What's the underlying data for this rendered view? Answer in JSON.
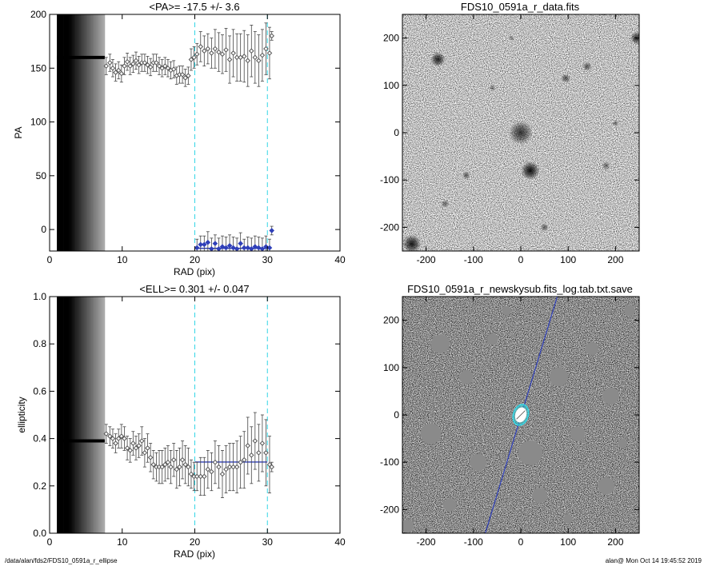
{
  "footer": {
    "path": "/data/alan/fds2/FDS10_0591a_r_ellipse",
    "stamp": "alan@  Mon Oct 14 19:45:52 2019"
  },
  "colors": {
    "cyan_marker": "#33d6e6",
    "fit_line": "#2f3fb8",
    "data_points": "#555555",
    "masked_region": "#8a8a8a"
  },
  "chart_data": [
    {
      "id": "pa",
      "type": "scatter",
      "title": "<PA>= -17.5 +/-   3.6",
      "xlabel": "RAD (pix)",
      "ylabel": "PA",
      "xlim": [
        0,
        40
      ],
      "ylim": [
        -20,
        200
      ],
      "xticks": [
        0,
        10,
        20,
        30,
        40
      ],
      "yticks": [
        0,
        50,
        100,
        150,
        200
      ],
      "vlines": [
        20,
        30
      ],
      "mean_line": {
        "x": [
          20,
          30
        ],
        "y": -17.5
      },
      "core_band": {
        "x": [
          1,
          7.6
        ],
        "value": 160
      },
      "series": [
        {
          "role": "profile",
          "x": [
            7.8,
            8.3,
            8.7,
            9.1,
            9.5,
            9.9,
            10.3,
            10.7,
            11.1,
            11.5,
            11.9,
            12.3,
            12.7,
            13.1,
            13.5,
            13.9,
            14.3,
            14.7,
            15.1,
            15.5,
            15.9,
            16.3,
            16.7,
            17.1,
            17.5,
            17.9,
            18.3,
            18.7,
            19.1,
            19.5,
            19.9,
            20.3,
            20.8,
            21.3,
            21.8,
            22.3,
            22.8,
            23.3,
            23.8,
            24.3,
            24.8,
            25.3,
            25.8,
            26.3,
            26.8,
            27.3,
            27.8,
            28.3,
            28.8,
            29.3,
            29.8,
            30.3,
            30.6
          ],
          "y": [
            152,
            155,
            150,
            146,
            148,
            145,
            152,
            156,
            152,
            154,
            157,
            153,
            155,
            155,
            153,
            151,
            155,
            155,
            152,
            150,
            152,
            150,
            148,
            149,
            143,
            144,
            144,
            141,
            143,
            158,
            160,
            163,
            170,
            166,
            168,
            164,
            168,
            165,
            163,
            167,
            158,
            164,
            160,
            160,
            161,
            157,
            166,
            160,
            157,
            162,
            168,
            164,
            180
          ],
          "err": [
            8,
            8,
            8,
            8,
            8,
            8,
            8,
            8,
            8,
            8,
            8,
            8,
            8,
            8,
            8,
            8,
            8,
            8,
            8,
            8,
            8,
            8,
            8,
            8,
            8,
            8,
            8,
            8,
            8,
            10,
            10,
            10,
            14,
            14,
            14,
            14,
            18,
            18,
            18,
            20,
            22,
            22,
            22,
            22,
            24,
            24,
            24,
            24,
            24,
            24,
            24,
            24,
            4
          ]
        },
        {
          "role": "wrapped",
          "x": [
            20.3,
            20.8,
            21.3,
            21.8,
            22.3,
            22.8,
            23.3,
            23.8,
            24.3,
            24.8,
            25.3,
            25.8,
            26.3,
            26.8,
            27.3,
            27.8,
            28.3,
            28.8,
            29.3,
            29.8,
            30.3,
            30.6
          ],
          "y": [
            -17,
            -14,
            -14,
            -12,
            -18,
            -13,
            -18,
            -16,
            -17,
            -15,
            -17,
            -18,
            -13,
            -17,
            -17,
            -18,
            -16,
            -17,
            -18,
            -16,
            -17,
            -1
          ],
          "err": [
            8,
            8,
            8,
            10,
            10,
            8,
            10,
            10,
            10,
            10,
            10,
            10,
            10,
            8,
            10,
            10,
            10,
            10,
            10,
            10,
            8,
            4
          ]
        }
      ]
    },
    {
      "id": "ell",
      "type": "scatter",
      "title": "<ELL>= 0.301 +/-  0.047",
      "xlabel": "RAD (pix)",
      "ylabel": "ellipticity",
      "xlim": [
        0,
        40
      ],
      "ylim": [
        0,
        1
      ],
      "xticks": [
        0,
        10,
        20,
        30,
        40
      ],
      "yticks": [
        0.0,
        0.2,
        0.4,
        0.6,
        0.8,
        1.0
      ],
      "ytick_labels": [
        "0.0",
        "0.2",
        "0.4",
        "0.6",
        "0.8",
        "1.0"
      ],
      "vlines": [
        20,
        30
      ],
      "mean_line": {
        "x": [
          20,
          30
        ],
        "y": 0.301
      },
      "core_band": {
        "x": [
          1,
          7.6
        ],
        "value": 0.39
      },
      "series": [
        {
          "role": "profile",
          "x": [
            7.8,
            8.3,
            8.7,
            9.1,
            9.5,
            9.9,
            10.3,
            10.7,
            11.1,
            11.5,
            11.9,
            12.3,
            12.7,
            13.1,
            13.5,
            13.9,
            14.3,
            14.7,
            15.1,
            15.5,
            15.9,
            16.3,
            16.7,
            17.1,
            17.5,
            17.9,
            18.3,
            18.7,
            19.1,
            19.5,
            19.9,
            20.3,
            20.8,
            21.3,
            21.8,
            22.3,
            22.8,
            23.3,
            23.8,
            24.3,
            24.8,
            25.3,
            25.8,
            26.3,
            26.8,
            27.3,
            27.8,
            28.3,
            28.8,
            29.3,
            29.8,
            30.3,
            30.6
          ],
          "y": [
            0.42,
            0.41,
            0.4,
            0.38,
            0.4,
            0.41,
            0.4,
            0.36,
            0.35,
            0.38,
            0.36,
            0.37,
            0.39,
            0.34,
            0.36,
            0.32,
            0.29,
            0.28,
            0.28,
            0.28,
            0.29,
            0.3,
            0.28,
            0.31,
            0.27,
            0.28,
            0.31,
            0.29,
            0.28,
            0.25,
            0.24,
            0.24,
            0.24,
            0.24,
            0.27,
            0.26,
            0.3,
            0.28,
            0.25,
            0.27,
            0.28,
            0.28,
            0.28,
            0.3,
            0.31,
            0.37,
            0.33,
            0.39,
            0.34,
            0.38,
            0.34,
            0.29,
            0.28
          ],
          "err": [
            0.04,
            0.04,
            0.04,
            0.04,
            0.04,
            0.05,
            0.05,
            0.05,
            0.05,
            0.05,
            0.05,
            0.05,
            0.06,
            0.06,
            0.06,
            0.06,
            0.06,
            0.06,
            0.07,
            0.07,
            0.07,
            0.07,
            0.07,
            0.07,
            0.08,
            0.08,
            0.08,
            0.08,
            0.08,
            0.06,
            0.06,
            0.06,
            0.08,
            0.08,
            0.08,
            0.08,
            0.09,
            0.09,
            0.1,
            0.1,
            0.1,
            0.1,
            0.11,
            0.11,
            0.12,
            0.12,
            0.12,
            0.12,
            0.12,
            0.12,
            0.14,
            0.12,
            0.02
          ]
        }
      ]
    },
    {
      "id": "img-data",
      "type": "heatmap",
      "title": "FDS10_0591a_r_data.fits",
      "xlim": [
        -250,
        250
      ],
      "ylim": [
        -250,
        250
      ],
      "xticks": [
        -200,
        -100,
        0,
        100,
        200
      ],
      "yticks": [
        -200,
        -100,
        0,
        100,
        200
      ],
      "colormap": "grayscale-inverted",
      "sources": [
        {
          "x": 0,
          "y": 0,
          "r": 18,
          "level": 0.75
        },
        {
          "x": 20,
          "y": -80,
          "r": 14,
          "level": 0.95
        },
        {
          "x": -175,
          "y": 155,
          "r": 11,
          "level": 0.85
        },
        {
          "x": 95,
          "y": 115,
          "r": 7,
          "level": 0.6
        },
        {
          "x": -230,
          "y": -235,
          "r": 14,
          "level": 0.9
        },
        {
          "x": 245,
          "y": 200,
          "r": 10,
          "level": 0.8
        },
        {
          "x": -115,
          "y": -90,
          "r": 6,
          "level": 0.55
        },
        {
          "x": 140,
          "y": 140,
          "r": 7,
          "level": 0.55
        },
        {
          "x": -60,
          "y": 95,
          "r": 5,
          "level": 0.45
        },
        {
          "x": 180,
          "y": -70,
          "r": 6,
          "level": 0.5
        },
        {
          "x": -160,
          "y": -150,
          "r": 6,
          "level": 0.5
        },
        {
          "x": 50,
          "y": -200,
          "r": 6,
          "level": 0.55
        },
        {
          "x": 200,
          "y": 20,
          "r": 5,
          "level": 0.45
        },
        {
          "x": -20,
          "y": 200,
          "r": 4,
          "level": 0.4
        }
      ]
    },
    {
      "id": "img-model",
      "type": "heatmap",
      "title": "FDS10_0591a_r_newskysub.fits_log.tab.txt.save",
      "xlim": [
        -250,
        250
      ],
      "ylim": [
        -250,
        250
      ],
      "xticks": [
        -200,
        -100,
        0,
        100,
        200
      ],
      "yticks": [
        -200,
        -100,
        0,
        100,
        200
      ],
      "colormap": "grayscale",
      "axis_line": {
        "from": [
          -75,
          -250
        ],
        "to": [
          77,
          250
        ]
      },
      "ellipse": {
        "x": 0,
        "y": 0,
        "ellipticity": 0.301,
        "pa": -17.5,
        "semi_major_inner": 20,
        "semi_major_outer": 30
      },
      "masks": [
        {
          "x": -170,
          "y": 150,
          "r": 20
        },
        {
          "x": -190,
          "y": -40,
          "r": 22
        },
        {
          "x": -115,
          "y": 80,
          "r": 15
        },
        {
          "x": -60,
          "y": 160,
          "r": 12
        },
        {
          "x": 80,
          "y": 80,
          "r": 20
        },
        {
          "x": 150,
          "y": 140,
          "r": 14
        },
        {
          "x": 190,
          "y": 40,
          "r": 18
        },
        {
          "x": 120,
          "y": -40,
          "r": 16
        },
        {
          "x": 20,
          "y": -80,
          "r": 26
        },
        {
          "x": -90,
          "y": -100,
          "r": 18
        },
        {
          "x": -150,
          "y": -190,
          "r": 14
        },
        {
          "x": 40,
          "y": -170,
          "r": 16
        },
        {
          "x": 180,
          "y": -150,
          "r": 18
        },
        {
          "x": 230,
          "y": 220,
          "r": 12
        },
        {
          "x": -240,
          "y": -235,
          "r": 14
        },
        {
          "x": 100,
          "y": -220,
          "r": 10
        },
        {
          "x": -30,
          "y": 220,
          "r": 10
        },
        {
          "x": 215,
          "y": -60,
          "r": 10
        }
      ]
    }
  ]
}
